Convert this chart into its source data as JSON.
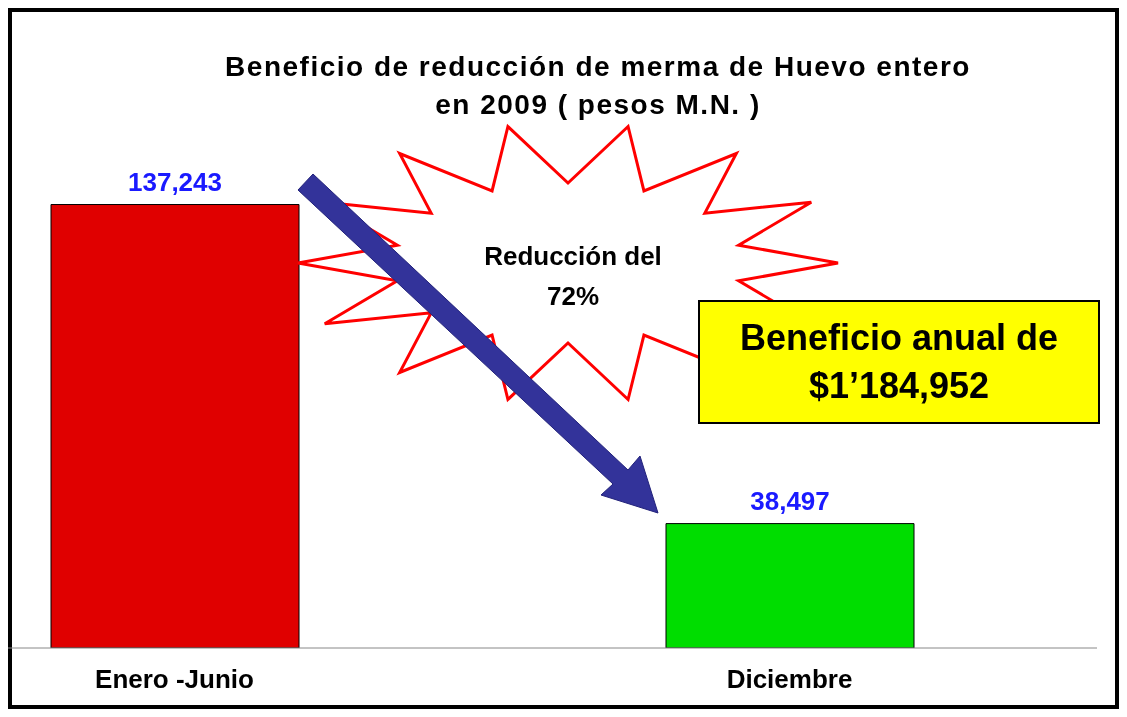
{
  "chart_data": {
    "type": "bar",
    "title": "Beneficio de reducción de merma de Huevo entero\nen 2009 ( pesos M.N. )",
    "categories": [
      "Enero -Junio",
      "Diciembre"
    ],
    "values": [
      137243,
      38497
    ],
    "colors": [
      "#e00000",
      "#00dd00"
    ],
    "value_labels": [
      "137,243",
      "38,497"
    ],
    "annotations": [
      "Reducción del 72%",
      "Beneficio anual de $1’184,952"
    ]
  }
}
